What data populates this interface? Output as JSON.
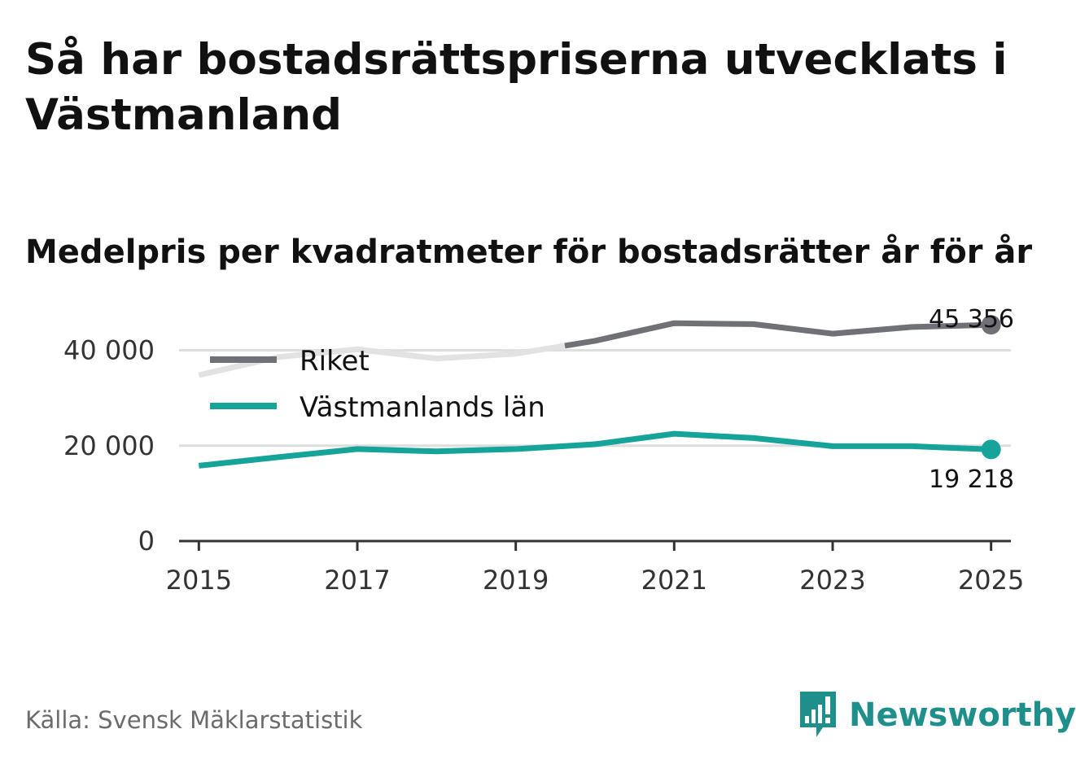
{
  "title": "Så har bostadsrättspriserna utvecklats i Västmanland",
  "subtitle": "Medelpris per kvadratmeter för bostadsrätter år för år",
  "source": "Källa: Svensk Mäklarstatistik",
  "brand": {
    "name": "Newsworthy",
    "logo_icon": "bar-chart-speech-bubble-icon",
    "color": "#1e8f8a"
  },
  "colors": {
    "riket": "#707077",
    "riket_faded": "#e2e2e2",
    "vastmanland": "#16a39a",
    "grid": "#dddddd",
    "axis": "#333333"
  },
  "chart_data": {
    "type": "line",
    "x": [
      2015,
      2016,
      2017,
      2018,
      2019,
      2020,
      2021,
      2022,
      2023,
      2024,
      2025
    ],
    "xticks": [
      2015,
      2017,
      2019,
      2021,
      2023,
      2025
    ],
    "xtick_labels": [
      "2015",
      "2017",
      "2019",
      "2021",
      "2023",
      "2025"
    ],
    "yticks": [
      0,
      20000,
      40000
    ],
    "ytick_labels": [
      "0",
      "20 000",
      "40 000"
    ],
    "ylim": [
      0,
      50000
    ],
    "xlim": [
      2014.75,
      2025.25
    ],
    "series": [
      {
        "name": "Riket",
        "values": [
          34800,
          38600,
          40200,
          38300,
          39300,
          42000,
          45700,
          45500,
          43500,
          44900,
          45356
        ],
        "end_label": "45 356"
      },
      {
        "name": "Västmanlands län",
        "values": [
          15800,
          17600,
          19300,
          18800,
          19300,
          20300,
          22500,
          21600,
          19900,
          19900,
          19218
        ],
        "end_label": "19 218"
      }
    ],
    "legend": [
      "Riket",
      "Västmanlands län"
    ],
    "legend_position": "top-left"
  }
}
